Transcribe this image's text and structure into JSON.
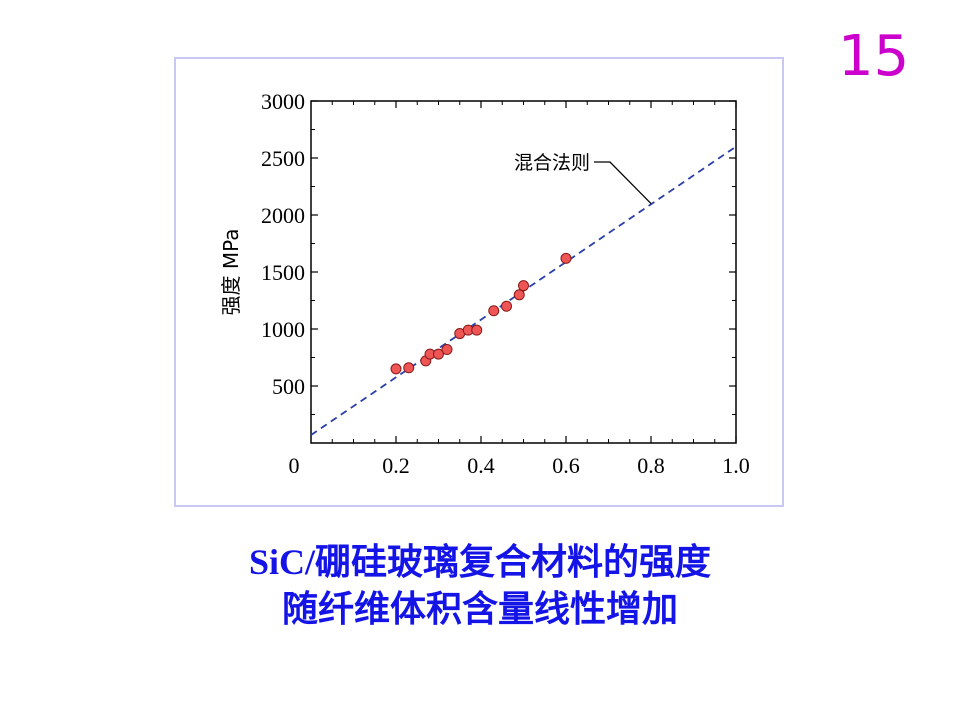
{
  "page": {
    "number": "15"
  },
  "caption": {
    "line1_prefix": "SiC/",
    "line1_rest": "硼硅玻璃复合材料的强度",
    "line2": "随纤维体积含量线性增加"
  },
  "chart_data": {
    "type": "scatter",
    "ylabel": "强度 MPa",
    "xlabel": "",
    "xlim": [
      0,
      1.0
    ],
    "ylim": [
      0,
      3000
    ],
    "x_ticks": [
      0.2,
      0.4,
      0.6,
      0.8,
      1.0
    ],
    "x_tick_labels": [
      "0.2",
      "0.4",
      "0.6",
      "0.8",
      "1.0"
    ],
    "y_ticks": [
      500,
      1000,
      1500,
      2000,
      2500,
      3000
    ],
    "y_tick_labels": [
      "500",
      "1000",
      "1500",
      "2000",
      "2500",
      "3000"
    ],
    "origin_label": "0",
    "grid": false,
    "series": [
      {
        "x": [
          0.2,
          0.23,
          0.27,
          0.28,
          0.3,
          0.32,
          0.35,
          0.37,
          0.39,
          0.43,
          0.46,
          0.49,
          0.5,
          0.6
        ],
        "y": [
          650,
          660,
          720,
          780,
          780,
          820,
          960,
          990,
          990,
          1160,
          1200,
          1300,
          1380,
          1620
        ],
        "color": "#ee5555"
      }
    ],
    "fit_line": {
      "x": [
        0,
        1.0
      ],
      "y": [
        70,
        2600
      ],
      "color": "#2a3fa8",
      "style": "dashed"
    },
    "annotation": {
      "text": "混合法则",
      "points_to_x": 0.8,
      "points_to_y": 2100
    }
  }
}
